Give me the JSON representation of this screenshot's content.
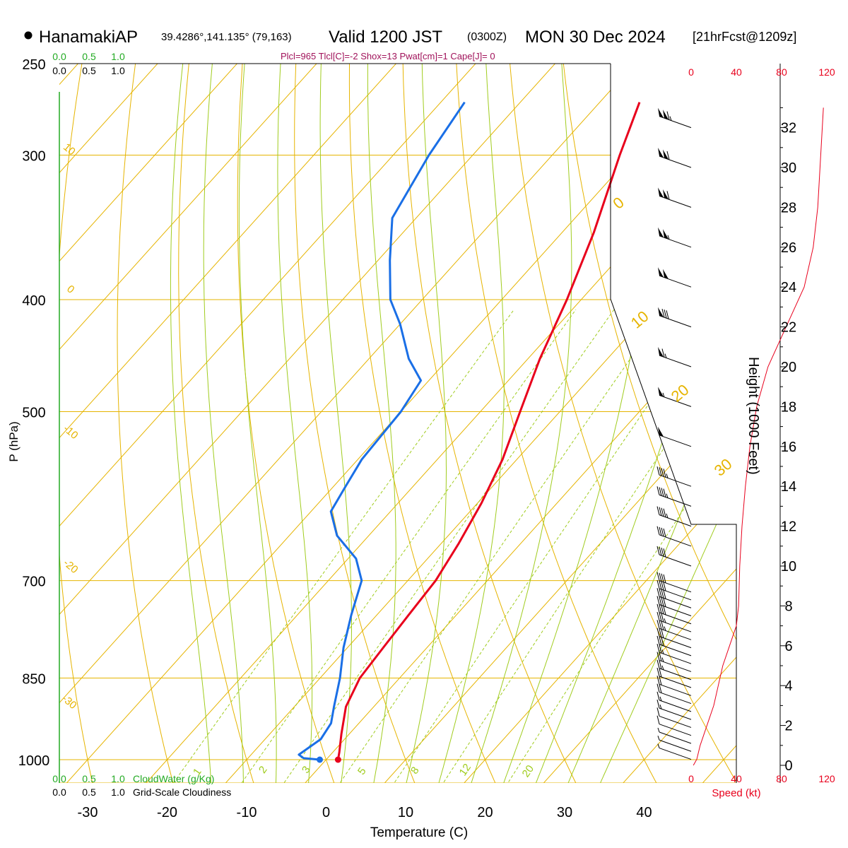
{
  "header": {
    "station": "HanamakiAP",
    "coords": "39.4286°,141.135° (79,163)",
    "valid_prefix": "Valid 1200 JST",
    "valid_utc": "(0300Z)",
    "valid_date": "MON 30 Dec 2024",
    "fcst": "[21hrFcst@1209z]",
    "indices": "Plcl=965 Tlcl[C]=-2 Shox=13 Pwat[cm]=1 Cape[J]= 0"
  },
  "colors": {
    "temperature": "#e8001c",
    "dewpoint": "#1a6fe6",
    "isotherm": "#e6b400",
    "dry_adiabat": "#e6b400",
    "moist_adiabat": "#a0cc1e",
    "mixing_ratio": "#a0cc1e",
    "cloud_scale": "#22aa22",
    "wind": "#000000",
    "speed": "#e8001c"
  },
  "chart_data": {
    "type": "skew-t",
    "xlabel": "Temperature (C)",
    "ylabel": "P (hPa)",
    "right_axis_label": "Height (1000 Feet)",
    "x_ticks": [
      -30,
      -20,
      -10,
      0,
      10,
      20,
      30,
      40
    ],
    "pressure_levels": [
      250,
      300,
      400,
      500,
      700,
      850,
      1000
    ],
    "height_ticks_kft": [
      0,
      2,
      4,
      6,
      8,
      10,
      12,
      14,
      16,
      18,
      20,
      22,
      24,
      26,
      28,
      30,
      32
    ],
    "speed_ticks_top": [
      0,
      40,
      80,
      120
    ],
    "speed_ticks_bottom": [
      0,
      40,
      80,
      120
    ],
    "speed_axis_label": "Speed (kt)",
    "cloudwater_scale_label": "CloudWater (g/Kg)",
    "cloudwater_ticks": [
      "0.0",
      "0.5",
      "1.0"
    ],
    "cloudiness_label": "Grid-Scale Cloudiness",
    "cloudiness_ticks": [
      "0.0",
      "0.5",
      "1.0"
    ],
    "top_scale_green": [
      "0.0",
      "0.5",
      "1.0"
    ],
    "top_scale_black": [
      "0.0",
      "0.5",
      "1.0"
    ],
    "dry_adiabat_labels": [
      "10",
      "0",
      "-10",
      "-20",
      "-30"
    ],
    "moist_adiabat_labels": [
      "0",
      "10",
      "20",
      "30"
    ],
    "mixing_ratio_labels": [
      "1",
      "2",
      "3",
      "5",
      "8",
      "12",
      "20"
    ],
    "temperature_profile": {
      "name": "Temperature",
      "points": [
        [
          1000,
          1.5
        ],
        [
          985,
          0.8
        ],
        [
          950,
          -1.0
        ],
        [
          900,
          -3.5
        ],
        [
          850,
          -5.0
        ],
        [
          800,
          -5.5
        ],
        [
          750,
          -6.0
        ],
        [
          700,
          -6.5
        ],
        [
          650,
          -7.8
        ],
        [
          600,
          -9.5
        ],
        [
          550,
          -11.8
        ],
        [
          500,
          -15.0
        ],
        [
          450,
          -18.5
        ],
        [
          400,
          -21.8
        ],
        [
          350,
          -26.0
        ],
        [
          300,
          -31.5
        ],
        [
          270,
          -35.0
        ]
      ]
    },
    "dewpoint_profile": {
      "name": "Dewpoint",
      "points": [
        [
          1000,
          -0.8
        ],
        [
          997,
          -3.0
        ],
        [
          990,
          -4.0
        ],
        [
          960,
          -3.0
        ],
        [
          930,
          -3.5
        ],
        [
          900,
          -5.0
        ],
        [
          850,
          -7.5
        ],
        [
          800,
          -10.5
        ],
        [
          750,
          -13.2
        ],
        [
          700,
          -15.8
        ],
        [
          670,
          -19.0
        ],
        [
          640,
          -24.0
        ],
        [
          610,
          -27.5
        ],
        [
          580,
          -28.5
        ],
        [
          550,
          -29.5
        ],
        [
          500,
          -30.0
        ],
        [
          470,
          -31.0
        ],
        [
          450,
          -35.0
        ],
        [
          420,
          -40.0
        ],
        [
          400,
          -44.0
        ],
        [
          370,
          -48.5
        ],
        [
          340,
          -53.0
        ],
        [
          300,
          -55.5
        ],
        [
          270,
          -57.0
        ]
      ]
    },
    "wind_speed_profile_kt": [
      [
        0,
        2
      ],
      [
        0.3,
        5
      ],
      [
        1.0,
        8
      ],
      [
        2.0,
        14
      ],
      [
        3.0,
        20
      ],
      [
        4.0,
        24
      ],
      [
        5.0,
        28
      ],
      [
        6.0,
        34
      ],
      [
        7.0,
        40
      ],
      [
        8.0,
        42
      ],
      [
        10.0,
        43
      ],
      [
        12.0,
        45
      ],
      [
        14.0,
        48
      ],
      [
        16.0,
        52
      ],
      [
        18.0,
        58
      ],
      [
        20.0,
        68
      ],
      [
        22.0,
        84
      ],
      [
        24.0,
        100
      ],
      [
        26.0,
        108
      ],
      [
        28.0,
        112
      ],
      [
        30.0,
        114
      ],
      [
        32.0,
        116
      ],
      [
        33.0,
        117
      ]
    ]
  }
}
